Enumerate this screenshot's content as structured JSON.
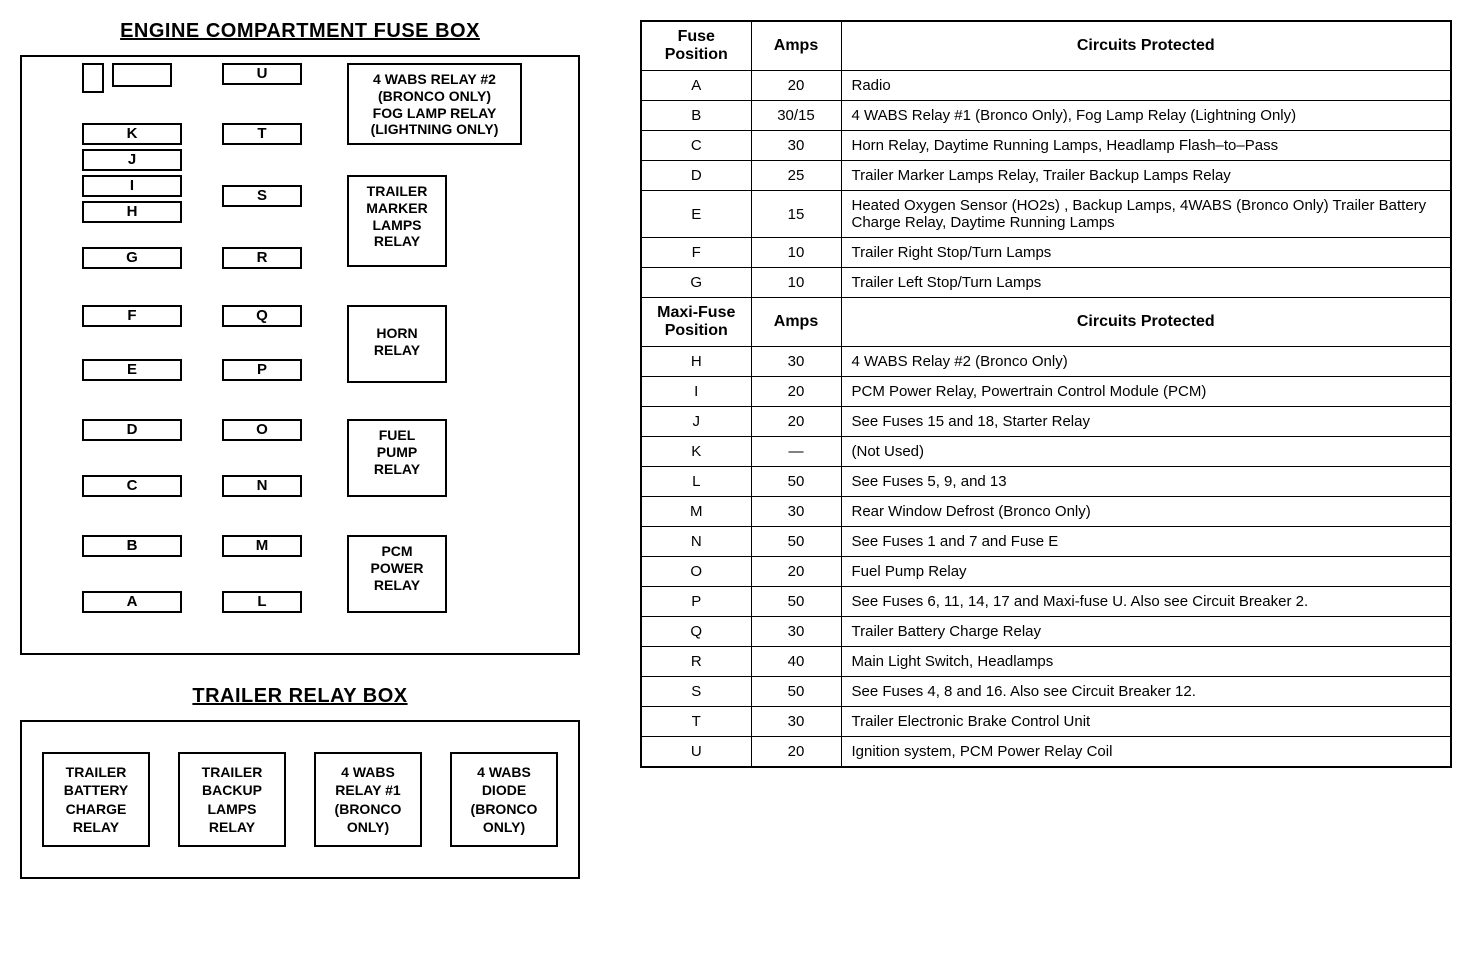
{
  "engine_box": {
    "title": "ENGINE COMPARTMENT FUSE BOX",
    "col1_top_blank1": "",
    "col1_top_blank2": "",
    "slots_col1": [
      "K",
      "J",
      "I",
      "H",
      "G",
      "F",
      "E",
      "D",
      "C",
      "B",
      "A"
    ],
    "slots_col2": [
      "U",
      "T",
      "S",
      "R",
      "Q",
      "P",
      "O",
      "N",
      "M",
      "L"
    ],
    "relay1": "4 WABS RELAY #2\n(BRONCO ONLY)\nFOG LAMP RELAY\n(LIGHTNING ONLY)",
    "relay2": "TRAILER\nMARKER\nLAMPS\nRELAY",
    "relay3": "HORN\nRELAY",
    "relay4": "FUEL\nPUMP\nRELAY",
    "relay5": "PCM\nPOWER\nRELAY"
  },
  "trailer_box": {
    "title": "TRAILER RELAY BOX",
    "items": [
      "TRAILER\nBATTERY\nCHARGE\nRELAY",
      "TRAILER\nBACKUP\nLAMPS\nRELAY",
      "4 WABS\nRELAY #1\n(BRONCO\nONLY)",
      "4 WABS\nDIODE\n(BRONCO\nONLY)"
    ]
  },
  "table": {
    "header1": {
      "c1": "Fuse\nPosition",
      "c2": "Amps",
      "c3": "Circuits Protected"
    },
    "header2": {
      "c1": "Maxi-Fuse\nPosition",
      "c2": "Amps",
      "c3": "Circuits Protected"
    },
    "rows1": [
      {
        "pos": "A",
        "amps": "20",
        "circ": "Radio"
      },
      {
        "pos": "B",
        "amps": "30/15",
        "circ": "4 WABS Relay #1 (Bronco Only), Fog Lamp Relay (Lightning Only)"
      },
      {
        "pos": "C",
        "amps": "30",
        "circ": "Horn Relay, Daytime Running Lamps, Headlamp Flash–to–Pass"
      },
      {
        "pos": "D",
        "amps": "25",
        "circ": "Trailer Marker Lamps Relay, Trailer Backup Lamps Relay"
      },
      {
        "pos": "E",
        "amps": "15",
        "circ": "Heated Oxygen Sensor (HO2s) , Backup Lamps, 4WABS (Bronco Only) Trailer Battery Charge Relay, Daytime Running Lamps"
      },
      {
        "pos": "F",
        "amps": "10",
        "circ": "Trailer Right Stop/Turn Lamps"
      },
      {
        "pos": "G",
        "amps": "10",
        "circ": "Trailer Left Stop/Turn Lamps"
      }
    ],
    "rows2": [
      {
        "pos": "H",
        "amps": "30",
        "circ": "4 WABS Relay #2 (Bronco Only)"
      },
      {
        "pos": "I",
        "amps": "20",
        "circ": "PCM Power Relay, Powertrain Control Module (PCM)"
      },
      {
        "pos": "J",
        "amps": "20",
        "circ": "See Fuses 15 and 18, Starter Relay"
      },
      {
        "pos": "K",
        "amps": "—",
        "circ": "(Not Used)"
      },
      {
        "pos": "L",
        "amps": "50",
        "circ": "See Fuses 5, 9, and 13"
      },
      {
        "pos": "M",
        "amps": "30",
        "circ": "Rear Window Defrost (Bronco Only)"
      },
      {
        "pos": "N",
        "amps": "50",
        "circ": "See Fuses 1 and 7 and Fuse E"
      },
      {
        "pos": "O",
        "amps": "20",
        "circ": "Fuel Pump Relay"
      },
      {
        "pos": "P",
        "amps": "50",
        "circ": "See Fuses 6, 11, 14, 17 and Maxi-fuse U. Also see Circuit Breaker 2."
      },
      {
        "pos": "Q",
        "amps": "30",
        "circ": "Trailer Battery Charge Relay"
      },
      {
        "pos": "R",
        "amps": "40",
        "circ": "Main Light Switch, Headlamps"
      },
      {
        "pos": "S",
        "amps": "50",
        "circ": "See Fuses 4, 8 and 16. Also see Circuit Breaker 12."
      },
      {
        "pos": "T",
        "amps": "30",
        "circ": "Trailer Electronic Brake Control Unit"
      },
      {
        "pos": "U",
        "amps": "20",
        "circ": "Ignition system, PCM Power Relay Coil"
      }
    ]
  }
}
